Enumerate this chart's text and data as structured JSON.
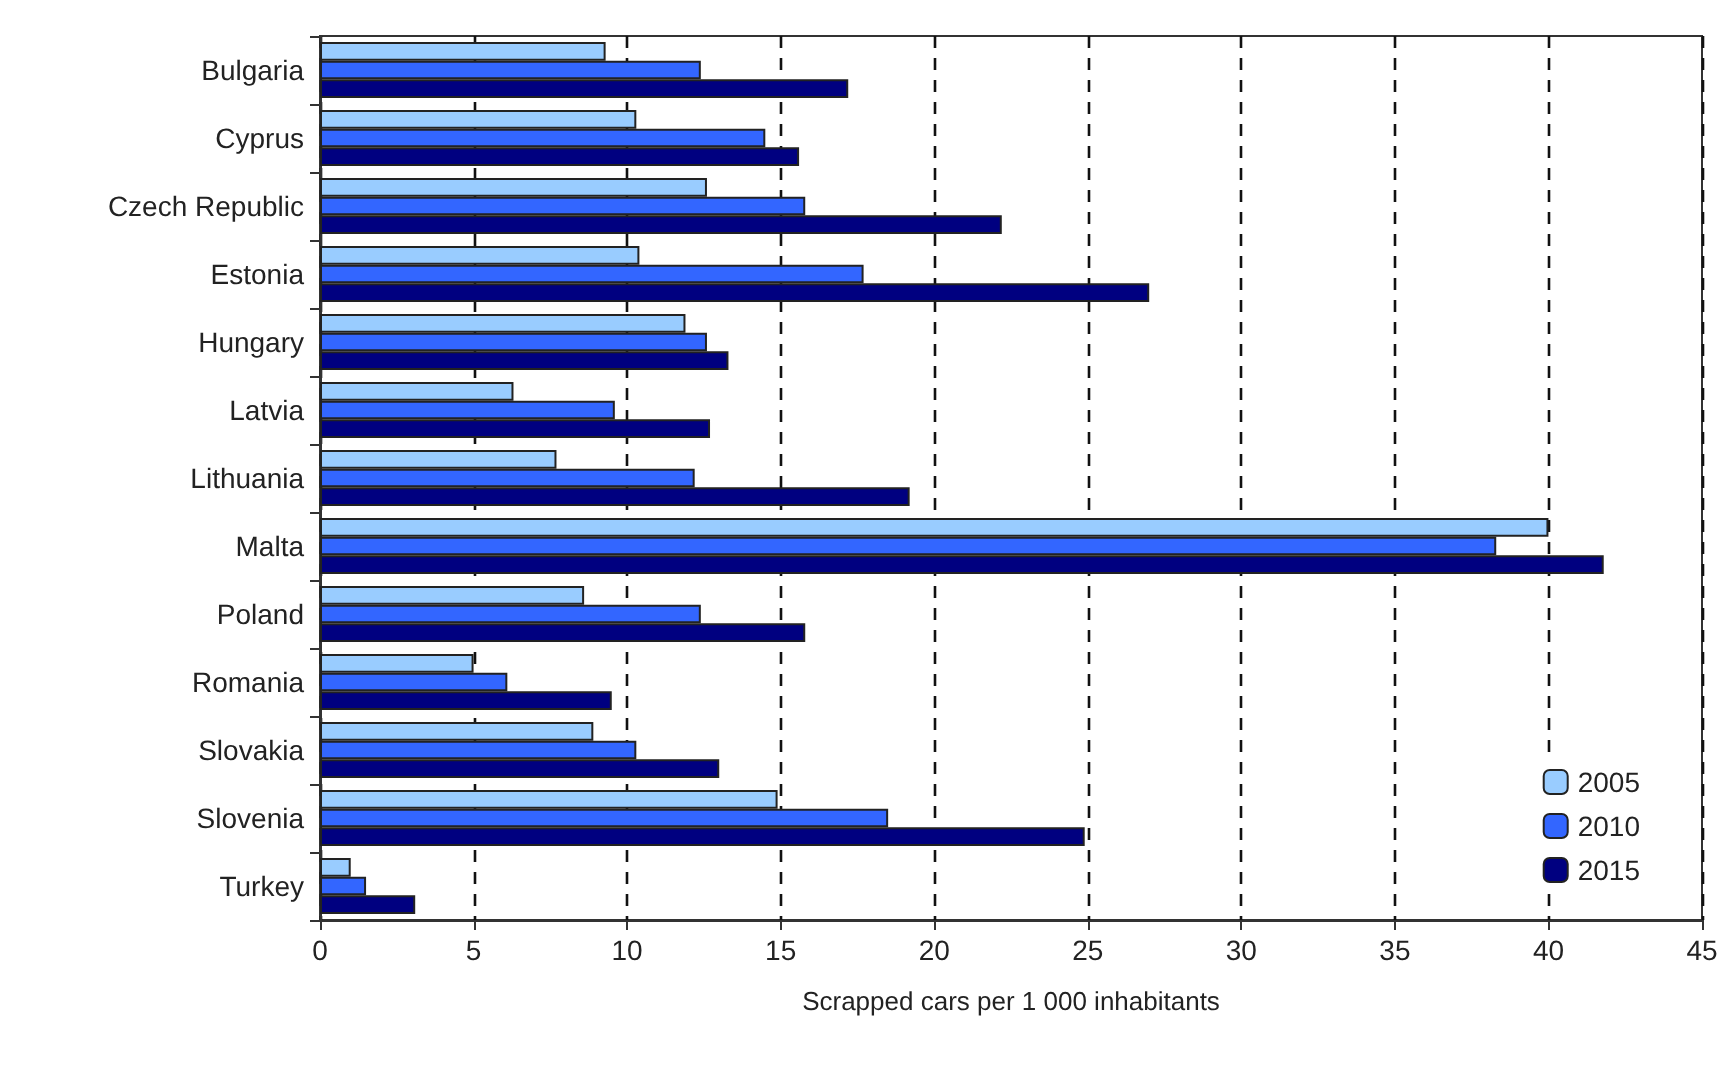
{
  "chart_data": {
    "type": "bar",
    "orientation": "horizontal",
    "xlabel": "Scrapped cars per 1 000 inhabitants",
    "categories": [
      "Bulgaria",
      "Cyprus",
      "Czech Republic",
      "Estonia",
      "Hungary",
      "Latvia",
      "Lithuania",
      "Malta",
      "Poland",
      "Romania",
      "Slovakia",
      "Slovenia",
      "Turkey"
    ],
    "series": [
      {
        "name": "2005",
        "color": "#99ccff",
        "values": [
          9.3,
          10.3,
          12.6,
          10.4,
          11.9,
          6.3,
          7.7,
          40,
          8.6,
          5.0,
          8.9,
          14.9,
          1.0
        ]
      },
      {
        "name": "2010",
        "color": "#3366ff",
        "values": [
          12.4,
          14.5,
          15.8,
          17.7,
          12.6,
          9.6,
          12.2,
          38.3,
          12.4,
          6.1,
          10.3,
          18.5,
          1.5
        ]
      },
      {
        "name": "2015",
        "color": "#000080",
        "values": [
          17.2,
          15.6,
          22.2,
          27.0,
          13.3,
          12.7,
          19.2,
          41.8,
          15.8,
          9.5,
          13.0,
          24.9,
          3.1
        ]
      }
    ],
    "xlim": [
      0,
      45
    ],
    "xticks": [
      0,
      5,
      10,
      15,
      20,
      25,
      30,
      35,
      40,
      45
    ],
    "grid": "x",
    "legend": "bottom right"
  }
}
